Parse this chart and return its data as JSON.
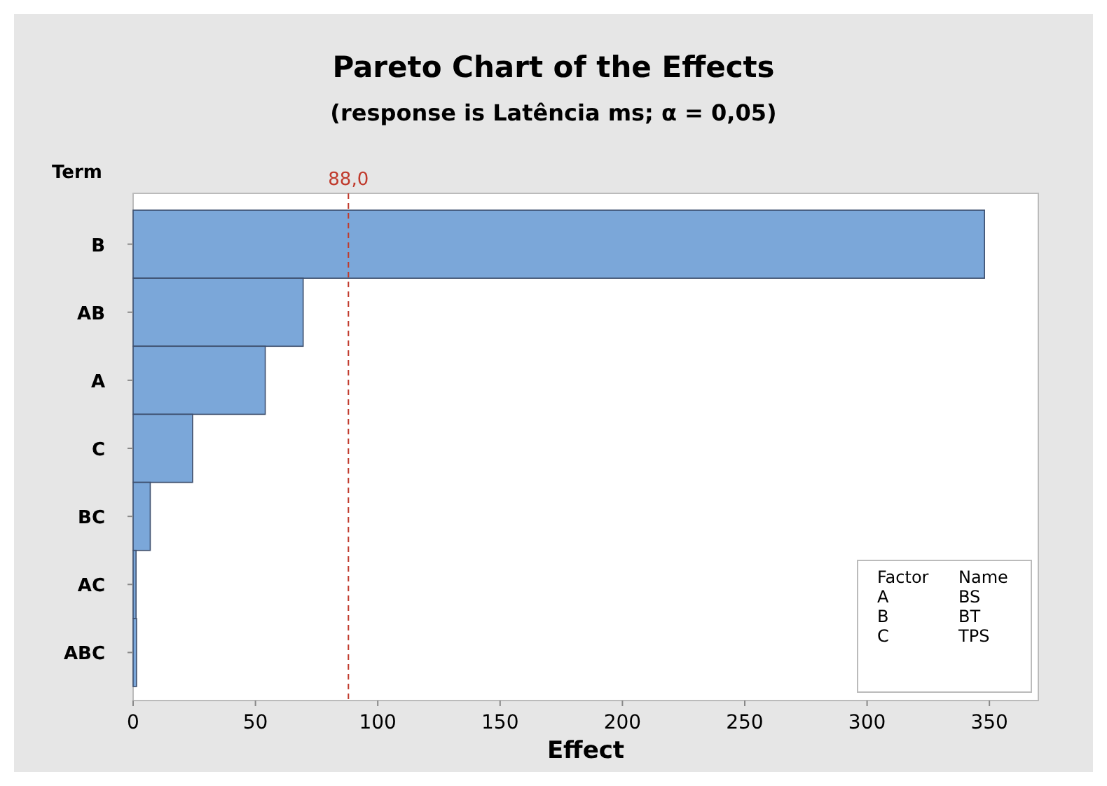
{
  "chart_data": {
    "type": "bar",
    "orientation": "horizontal",
    "title": "Pareto Chart of the Effects",
    "subtitle": "(response is Latência ms; α = 0,05)",
    "ylabel": "Term",
    "xlabel": "Effect",
    "categories": [
      "B",
      "AB",
      "A",
      "C",
      "BC",
      "AC",
      "ABC"
    ],
    "values": [
      348,
      69.5,
      54,
      24.3,
      7,
      1.2,
      1.4
    ],
    "color": "#7ba7d9",
    "xlim": [
      0,
      370
    ],
    "xticks": [
      0,
      50,
      100,
      150,
      200,
      250,
      300,
      350
    ],
    "ref_lines": [
      {
        "axis": "x",
        "value": 88,
        "label": "88,0",
        "color": "#c0392b",
        "line_style": "dashed"
      }
    ],
    "annotations": [
      "Factor",
      "Name",
      "A",
      "BS",
      "B",
      "BT",
      "C",
      "TPS"
    ]
  }
}
